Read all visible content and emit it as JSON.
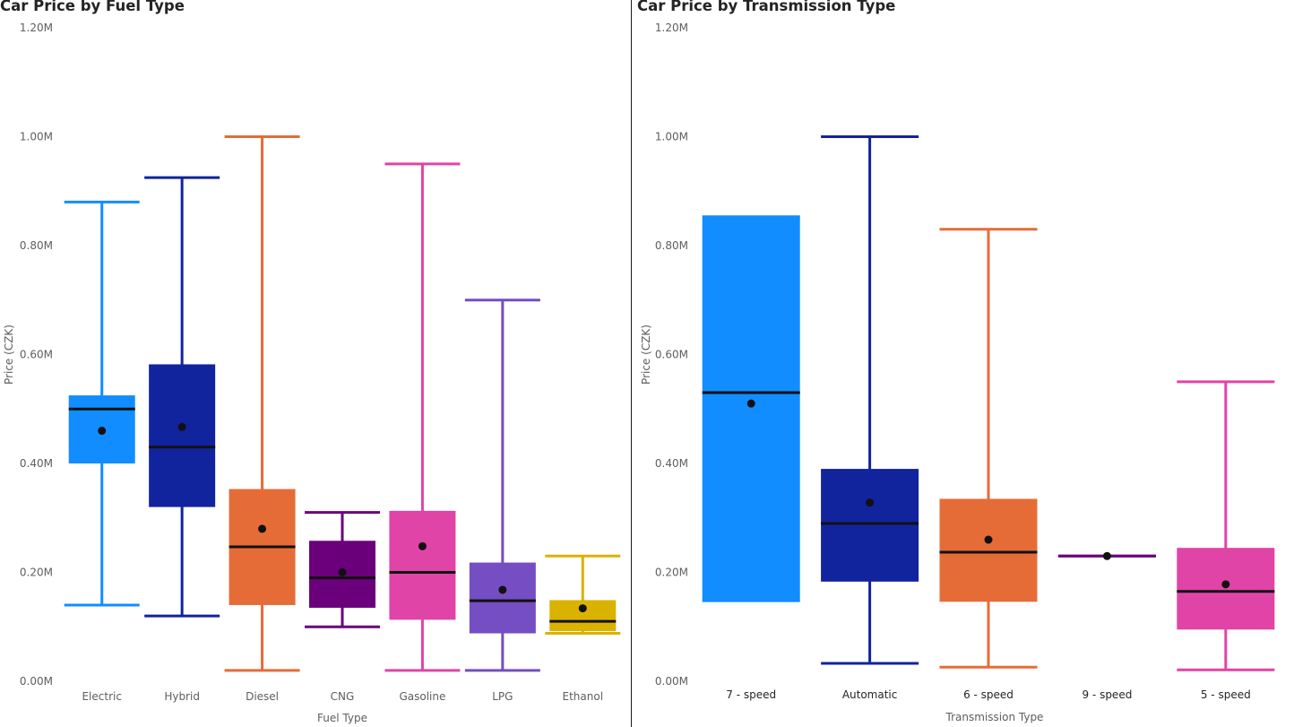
{
  "chart_data": [
    {
      "type": "boxplot",
      "title": "Car Price by Fuel Type",
      "xlabel": "Fuel Type",
      "ylabel": "Price (CZK)",
      "ylim": [
        0,
        1200000
      ],
      "yticks": [
        "0.00M",
        "0.20M",
        "0.40M",
        "0.60M",
        "0.80M",
        "1.00M",
        "1.20M"
      ],
      "grid": false,
      "categories": [
        "Electric",
        "Hybrid",
        "Diesel",
        "CNG",
        "Gasoline",
        "LPG",
        "Ethanol"
      ],
      "colors": [
        "#118DFF",
        "#12239E",
        "#E66C37",
        "#6B007B",
        "#E044A7",
        "#744EC2",
        "#D9B300"
      ],
      "series": [
        {
          "name": "Electric",
          "min": 140000,
          "q1": 400000,
          "median": 500000,
          "q3": 525000,
          "max": 880000,
          "mean": 460000
        },
        {
          "name": "Hybrid",
          "min": 120000,
          "q1": 320000,
          "median": 430000,
          "q3": 582000,
          "max": 925000,
          "mean": 467000
        },
        {
          "name": "Diesel",
          "min": 20000,
          "q1": 140000,
          "median": 247000,
          "q3": 353000,
          "max": 1000000,
          "mean": 280000
        },
        {
          "name": "CNG",
          "min": 100000,
          "q1": 135000,
          "median": 190000,
          "q3": 258000,
          "max": 310000,
          "mean": 200000
        },
        {
          "name": "Gasoline",
          "min": 20000,
          "q1": 113000,
          "median": 200000,
          "q3": 313000,
          "max": 950000,
          "mean": 248000
        },
        {
          "name": "LPG",
          "min": 20000,
          "q1": 88000,
          "median": 148000,
          "q3": 218000,
          "max": 700000,
          "mean": 168000
        },
        {
          "name": "Ethanol",
          "min": 88000,
          "q1": 92000,
          "median": 110000,
          "q3": 149000,
          "max": 230000,
          "mean": 134000
        }
      ]
    },
    {
      "type": "boxplot",
      "title": "Car Price by Transmission Type",
      "xlabel": "Transmission Type",
      "ylabel": "Price (CZK)",
      "ylim": [
        0,
        1200000
      ],
      "yticks": [
        "0.00M",
        "0.20M",
        "0.40M",
        "0.60M",
        "0.80M",
        "1.00M",
        "1.20M"
      ],
      "grid": false,
      "categories": [
        "7 - speed",
        "Automatic",
        "6 - speed",
        "9 - speed",
        "5 - speed"
      ],
      "colors": [
        "#118DFF",
        "#12239E",
        "#E66C37",
        "#6B007B",
        "#E044A7"
      ],
      "series": [
        {
          "name": "7 - speed",
          "min": 148000,
          "q1": 148000,
          "median": 530000,
          "q3": 853000,
          "max": 853000,
          "mean": 510000
        },
        {
          "name": "Automatic",
          "min": 33000,
          "q1": 183000,
          "median": 290000,
          "q3": 390000,
          "max": 1000000,
          "mean": 328000
        },
        {
          "name": "6 - speed",
          "min": 26000,
          "q1": 146000,
          "median": 237000,
          "q3": 335000,
          "max": 830000,
          "mean": 260000
        },
        {
          "name": "9 - speed",
          "min": 230000,
          "q1": 230000,
          "median": 230000,
          "q3": 230000,
          "max": 230000,
          "mean": 230000
        },
        {
          "name": "5 - speed",
          "min": 21000,
          "q1": 95000,
          "median": 165000,
          "q3": 245000,
          "max": 550000,
          "mean": 178000
        }
      ]
    }
  ]
}
